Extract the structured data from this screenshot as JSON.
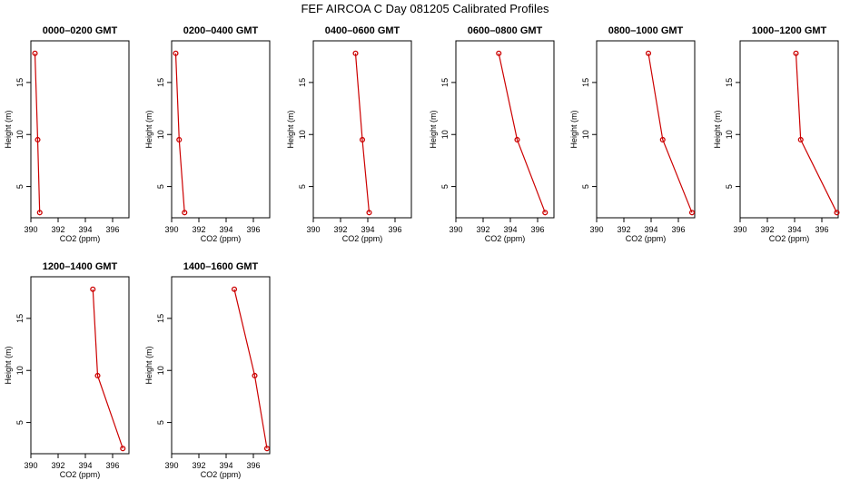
{
  "figure": {
    "title": "FEF AIRCOA C  Day 081205  Calibrated Profiles"
  },
  "colors": {
    "line": "#cc0000",
    "marker": "#cc0000",
    "axis": "#000000"
  },
  "chart_data": [
    {
      "type": "line",
      "title": "0000–0200 GMT",
      "xlabel": "CO2 (ppm)",
      "ylabel": "Height (m)",
      "xlim": [
        390,
        397.2
      ],
      "ylim": [
        2,
        19
      ],
      "xticks": [
        390,
        392,
        394,
        396
      ],
      "yticks": [
        5,
        10,
        15
      ],
      "series": [
        {
          "x": [
            390.3,
            390.5,
            390.65
          ],
          "y": [
            17.8,
            9.5,
            2.5
          ]
        }
      ]
    },
    {
      "type": "line",
      "title": "0200–0400 GMT",
      "xlabel": "CO2 (ppm)",
      "ylabel": "Height (m)",
      "xlim": [
        390,
        397.2
      ],
      "ylim": [
        2,
        19
      ],
      "xticks": [
        390,
        392,
        394,
        396
      ],
      "yticks": [
        5,
        10,
        15
      ],
      "series": [
        {
          "x": [
            390.3,
            390.55,
            390.95
          ],
          "y": [
            17.8,
            9.5,
            2.5
          ]
        }
      ]
    },
    {
      "type": "line",
      "title": "0400–0600 GMT",
      "xlabel": "CO2 (ppm)",
      "ylabel": "Height (m)",
      "xlim": [
        390,
        397.2
      ],
      "ylim": [
        2,
        19
      ],
      "xticks": [
        390,
        392,
        394,
        396
      ],
      "yticks": [
        5,
        10,
        15
      ],
      "series": [
        {
          "x": [
            393.1,
            393.6,
            394.1
          ],
          "y": [
            17.8,
            9.5,
            2.5
          ]
        }
      ]
    },
    {
      "type": "line",
      "title": "0600–0800 GMT",
      "xlabel": "CO2 (ppm)",
      "ylabel": "Height (m)",
      "xlim": [
        390,
        397.2
      ],
      "ylim": [
        2,
        19
      ],
      "xticks": [
        390,
        392,
        394,
        396
      ],
      "yticks": [
        5,
        10,
        15
      ],
      "series": [
        {
          "x": [
            393.15,
            394.5,
            396.55
          ],
          "y": [
            17.8,
            9.5,
            2.5
          ]
        }
      ]
    },
    {
      "type": "line",
      "title": "0800–1000 GMT",
      "xlabel": "CO2 (ppm)",
      "ylabel": "Height (m)",
      "xlim": [
        390,
        397.2
      ],
      "ylim": [
        2,
        19
      ],
      "xticks": [
        390,
        392,
        394,
        396
      ],
      "yticks": [
        5,
        10,
        15
      ],
      "series": [
        {
          "x": [
            393.8,
            394.85,
            397.0
          ],
          "y": [
            17.8,
            9.5,
            2.5
          ]
        }
      ]
    },
    {
      "type": "line",
      "title": "1000–1200 GMT",
      "xlabel": "CO2 (ppm)",
      "ylabel": "Height (m)",
      "xlim": [
        390,
        397.2
      ],
      "ylim": [
        2,
        19
      ],
      "xticks": [
        390,
        392,
        394,
        396
      ],
      "yticks": [
        5,
        10,
        15
      ],
      "series": [
        {
          "x": [
            394.1,
            394.45,
            397.1
          ],
          "y": [
            17.8,
            9.5,
            2.5
          ]
        }
      ]
    },
    {
      "type": "line",
      "title": "1200–1400 GMT",
      "xlabel": "CO2 (ppm)",
      "ylabel": "Height (m)",
      "xlim": [
        390,
        397.2
      ],
      "ylim": [
        2,
        19
      ],
      "xticks": [
        390,
        392,
        394,
        396
      ],
      "yticks": [
        5,
        10,
        15
      ],
      "series": [
        {
          "x": [
            394.55,
            394.9,
            396.75
          ],
          "y": [
            17.8,
            9.5,
            2.5
          ]
        }
      ]
    },
    {
      "type": "line",
      "title": "1400–1600 GMT",
      "xlabel": "CO2 (ppm)",
      "ylabel": "Height (m)",
      "xlim": [
        390,
        397.2
      ],
      "ylim": [
        2,
        19
      ],
      "xticks": [
        390,
        392,
        394,
        396
      ],
      "yticks": [
        5,
        10,
        15
      ],
      "series": [
        {
          "x": [
            394.6,
            396.1,
            397.0
          ],
          "y": [
            17.8,
            9.5,
            2.5
          ]
        }
      ]
    }
  ]
}
